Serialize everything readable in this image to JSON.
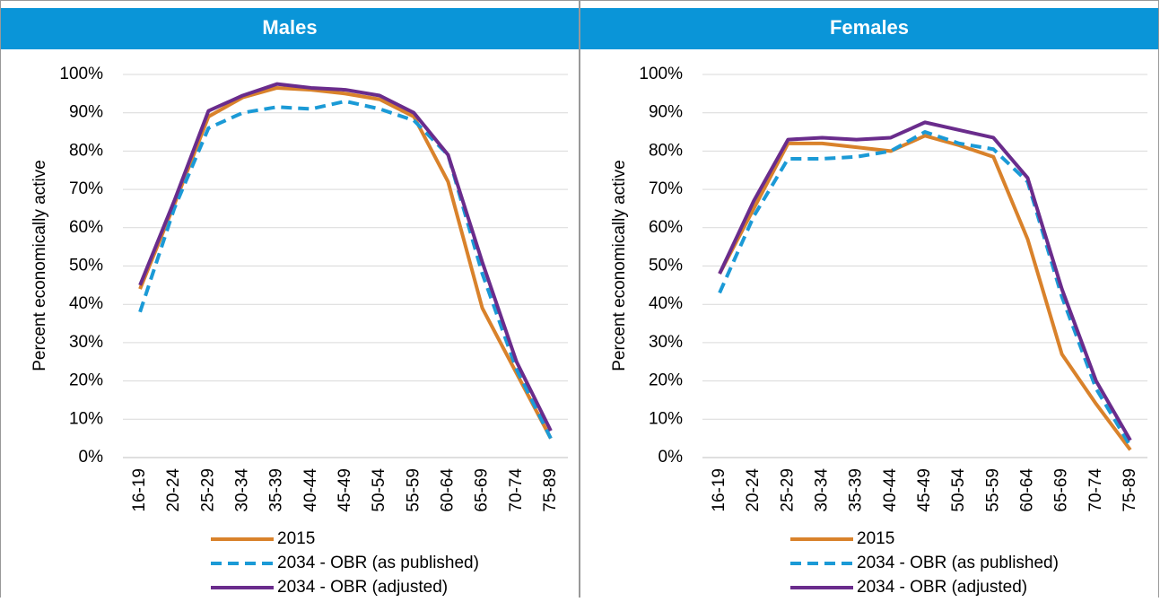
{
  "chart_data": [
    {
      "type": "line",
      "title": "Males",
      "y_label": "Percent economically active",
      "categories": [
        "16-19",
        "20-24",
        "25-29",
        "30-34",
        "35-39",
        "40-44",
        "45-49",
        "50-54",
        "55-59",
        "60-64",
        "65-69",
        "70-74",
        "75-89"
      ],
      "series": [
        {
          "name": "2015",
          "color": "#d9822b",
          "style": "solid",
          "values": [
            44,
            66,
            89,
            94,
            96.5,
            96,
            95,
            93.5,
            89,
            72,
            39,
            22,
            5
          ]
        },
        {
          "name": "2034 - OBR (as published)",
          "color": "#1b9ad6",
          "style": "dashed",
          "values": [
            38,
            65,
            86,
            90,
            91.5,
            91,
            93,
            91,
            88,
            79,
            48,
            23,
            5
          ]
        },
        {
          "name": "2034 - OBR (adjusted)",
          "color": "#6a2c8c",
          "style": "solid",
          "values": [
            45,
            67,
            90.5,
            94.5,
            97.5,
            96.5,
            96,
            94.5,
            90,
            79,
            51,
            25,
            7
          ]
        }
      ],
      "ylim": [
        0,
        100
      ],
      "yticks": [
        {
          "value": 0,
          "label": "0%"
        },
        {
          "value": 10,
          "label": "10%"
        },
        {
          "value": 20,
          "label": "20%"
        },
        {
          "value": 30,
          "label": "30%"
        },
        {
          "value": 40,
          "label": "40%"
        },
        {
          "value": 50,
          "label": "50%"
        },
        {
          "value": 60,
          "label": "60%"
        },
        {
          "value": 70,
          "label": "70%"
        },
        {
          "value": 80,
          "label": "80%"
        },
        {
          "value": 90,
          "label": "90%"
        },
        {
          "value": 100,
          "label": "100%"
        }
      ],
      "grid": true,
      "header_color": "#0a95d8"
    },
    {
      "type": "line",
      "title": "Females",
      "y_label": "Percent economically active",
      "categories": [
        "16-19",
        "20-24",
        "25-29",
        "30-34",
        "35-39",
        "40-44",
        "45-49",
        "50-54",
        "55-59",
        "60-64",
        "65-69",
        "70-74",
        "75-89"
      ],
      "series": [
        {
          "name": "2015",
          "color": "#d9822b",
          "style": "solid",
          "values": [
            48,
            65,
            82,
            82,
            81,
            80,
            84,
            81.5,
            78.5,
            57,
            27,
            14,
            2
          ]
        },
        {
          "name": "2034 - OBR (as published)",
          "color": "#1b9ad6",
          "style": "dashed",
          "values": [
            43,
            63,
            78,
            78,
            78.5,
            80,
            85,
            82,
            80.5,
            72,
            42,
            18,
            3
          ]
        },
        {
          "name": "2034 - OBR (adjusted)",
          "color": "#6a2c8c",
          "style": "solid",
          "values": [
            48,
            67,
            83,
            83.5,
            83,
            83.5,
            87.5,
            85.5,
            83.5,
            73,
            44,
            20,
            4.5
          ]
        }
      ],
      "ylim": [
        0,
        100
      ],
      "yticks": [
        {
          "value": 0,
          "label": "0%"
        },
        {
          "value": 10,
          "label": "10%"
        },
        {
          "value": 20,
          "label": "20%"
        },
        {
          "value": 30,
          "label": "30%"
        },
        {
          "value": 40,
          "label": "40%"
        },
        {
          "value": 50,
          "label": "50%"
        },
        {
          "value": 60,
          "label": "60%"
        },
        {
          "value": 70,
          "label": "70%"
        },
        {
          "value": 80,
          "label": "80%"
        },
        {
          "value": 90,
          "label": "90%"
        },
        {
          "value": 100,
          "label": "100%"
        }
      ],
      "grid": true,
      "header_color": "#0a95d8"
    }
  ]
}
